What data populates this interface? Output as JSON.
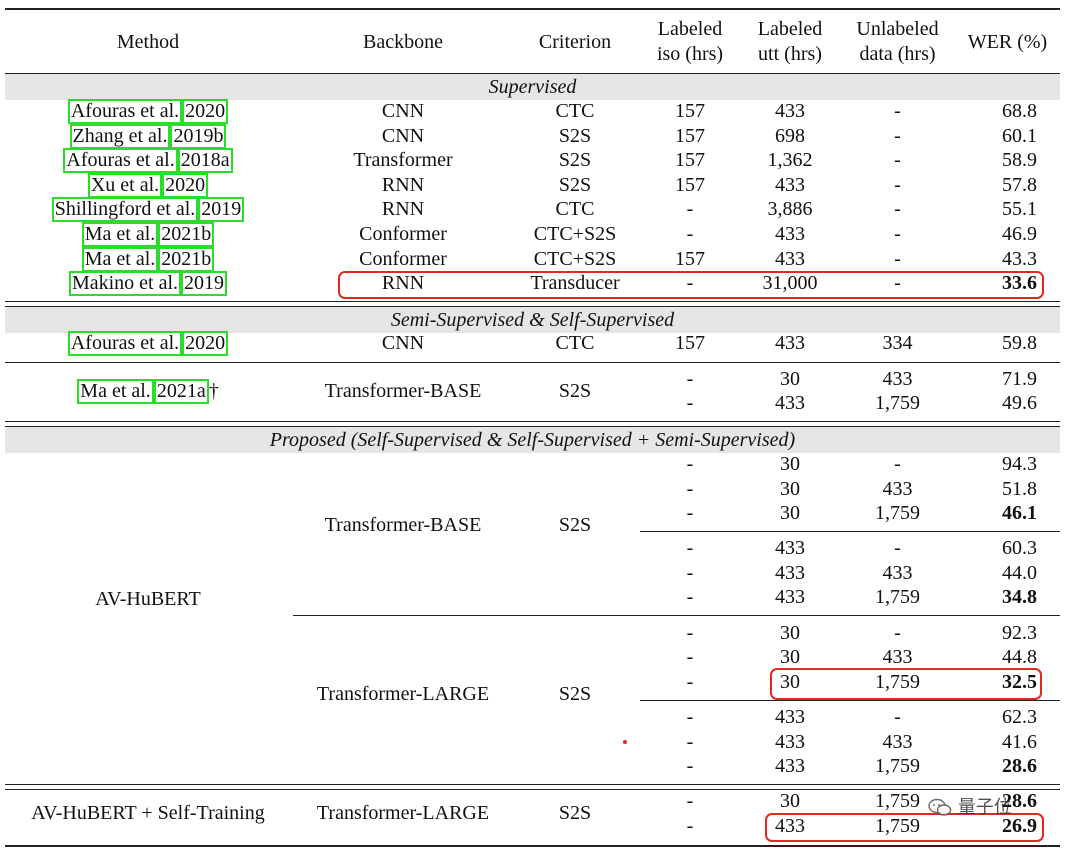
{
  "headers": {
    "method": "Method",
    "backbone": "Backbone",
    "criterion": "Criterion",
    "iso_line1": "Labeled",
    "iso_line2": "iso (hrs)",
    "utt_line1": "Labeled",
    "utt_line2": "utt (hrs)",
    "unl_line1": "Unlabeled",
    "unl_line2": "data (hrs)",
    "wer": "WER (%)"
  },
  "sections": {
    "supervised": "Supervised",
    "semi": "Semi-Supervised & Self-Supervised",
    "proposed": "Proposed (Self-Supervised & Self-Supervised + Semi-Supervised)"
  },
  "supervised_rows": [
    {
      "author": "Afouras et al.",
      "year": "2020",
      "backbone": "CNN",
      "criterion": "CTC",
      "iso": "157",
      "utt": "433",
      "unl": "-",
      "wer": "68.8"
    },
    {
      "author": "Zhang et al.",
      "year": "2019b",
      "backbone": "CNN",
      "criterion": "S2S",
      "iso": "157",
      "utt": "698",
      "unl": "-",
      "wer": "60.1"
    },
    {
      "author": "Afouras et al.",
      "year": "2018a",
      "backbone": "Transformer",
      "criterion": "S2S",
      "iso": "157",
      "utt": "1,362",
      "unl": "-",
      "wer": "58.9"
    },
    {
      "author": "Xu et al.",
      "year": "2020",
      "backbone": "RNN",
      "criterion": "S2S",
      "iso": "157",
      "utt": "433",
      "unl": "-",
      "wer": "57.8"
    },
    {
      "author": "Shillingford et al.",
      "year": "2019",
      "backbone": "RNN",
      "criterion": "CTC",
      "iso": "-",
      "utt": "3,886",
      "unl": "-",
      "wer": "55.1"
    },
    {
      "author": "Ma et al.",
      "year": "2021b",
      "backbone": "Conformer",
      "criterion": "CTC+S2S",
      "iso": "-",
      "utt": "433",
      "unl": "-",
      "wer": "46.9"
    },
    {
      "author": "Ma et al.",
      "year": "2021b",
      "backbone": "Conformer",
      "criterion": "CTC+S2S",
      "iso": "157",
      "utt": "433",
      "unl": "-",
      "wer": "43.3"
    },
    {
      "author": "Makino et al.",
      "year": "2019",
      "backbone": "RNN",
      "criterion": "Transducer",
      "iso": "-",
      "utt": "31,000",
      "unl": "-",
      "wer": "33.6"
    }
  ],
  "semi_rows": [
    {
      "author": "Afouras et al.",
      "year": "2020",
      "backbone": "CNN",
      "criterion": "CTC",
      "iso": "157",
      "utt": "433",
      "unl": "334",
      "wer": "59.8"
    }
  ],
  "ma2021a": {
    "author": "Ma et al.",
    "year": "2021a",
    "suffix": "†",
    "backbone": "Transformer-BASE",
    "criterion": "S2S",
    "rows": [
      {
        "iso": "-",
        "utt": "30",
        "unl": "433",
        "wer": "71.9"
      },
      {
        "iso": "-",
        "utt": "433",
        "unl": "1,759",
        "wer": "49.6"
      }
    ]
  },
  "avhubert": {
    "method": "AV-HuBERT",
    "base": {
      "backbone": "Transformer-BASE",
      "criterion": "S2S",
      "rows": [
        {
          "iso": "-",
          "utt": "30",
          "unl": "-",
          "wer": "94.3"
        },
        {
          "iso": "-",
          "utt": "30",
          "unl": "433",
          "wer": "51.8"
        },
        {
          "iso": "-",
          "utt": "30",
          "unl": "1,759",
          "wer": "46.1"
        },
        {
          "iso": "-",
          "utt": "433",
          "unl": "-",
          "wer": "60.3"
        },
        {
          "iso": "-",
          "utt": "433",
          "unl": "433",
          "wer": "44.0"
        },
        {
          "iso": "-",
          "utt": "433",
          "unl": "1,759",
          "wer": "34.8"
        }
      ]
    },
    "large": {
      "backbone": "Transformer-LARGE",
      "criterion": "S2S",
      "rows": [
        {
          "iso": "-",
          "utt": "30",
          "unl": "-",
          "wer": "92.3"
        },
        {
          "iso": "-",
          "utt": "30",
          "unl": "433",
          "wer": "44.8"
        },
        {
          "iso": "-",
          "utt": "30",
          "unl": "1,759",
          "wer": "32.5"
        },
        {
          "iso": "-",
          "utt": "433",
          "unl": "-",
          "wer": "62.3"
        },
        {
          "iso": "-",
          "utt": "433",
          "unl": "433",
          "wer": "41.6"
        },
        {
          "iso": "-",
          "utt": "433",
          "unl": "1,759",
          "wer": "28.6"
        }
      ]
    }
  },
  "selftrain": {
    "method": "AV-HuBERT + Self-Training",
    "backbone": "Transformer-LARGE",
    "criterion": "S2S",
    "rows": [
      {
        "iso": "-",
        "utt": "30",
        "unl": "1,759",
        "wer": "28.6"
      },
      {
        "iso": "-",
        "utt": "433",
        "unl": "1,759",
        "wer": "26.9"
      }
    ]
  },
  "watermark": "量子位",
  "watermark_icon": "wechat-icon"
}
